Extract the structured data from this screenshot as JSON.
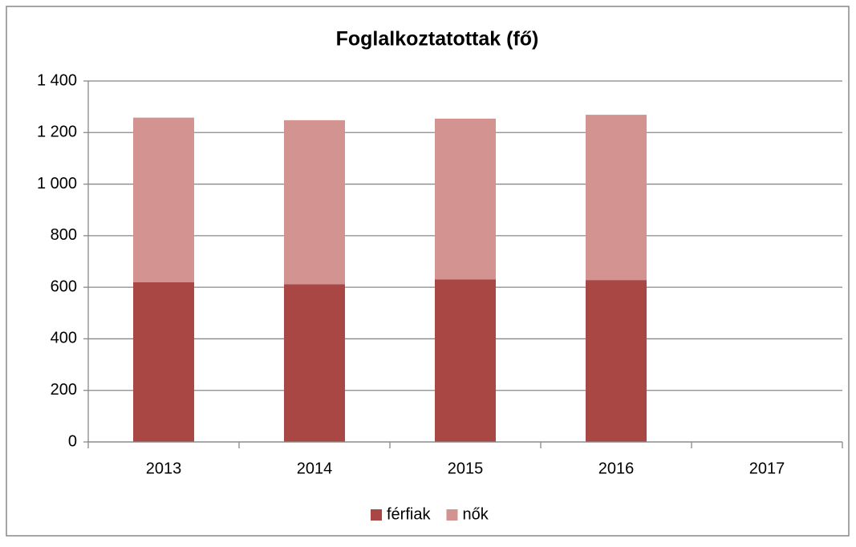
{
  "chart_data": {
    "type": "bar",
    "stacked": true,
    "title": "Foglalkoztatottak (fő)",
    "categories": [
      "2013",
      "2014",
      "2015",
      "2016",
      "2017"
    ],
    "series": [
      {
        "name": "férfiak",
        "color": "#a84744",
        "values": [
          620,
          612,
          630,
          628,
          null
        ]
      },
      {
        "name": "nők",
        "color": "#d29391",
        "values": [
          638,
          636,
          624,
          641,
          null
        ]
      }
    ],
    "ylim": [
      0,
      1400
    ],
    "yticks": [
      0,
      200,
      400,
      600,
      800,
      {
        "value": 1000,
        "label": "1 000"
      },
      {
        "value": 1200,
        "label": "1 200"
      },
      {
        "value": 1400,
        "label": "1 400"
      }
    ],
    "grid": true,
    "legend": "bottom"
  }
}
